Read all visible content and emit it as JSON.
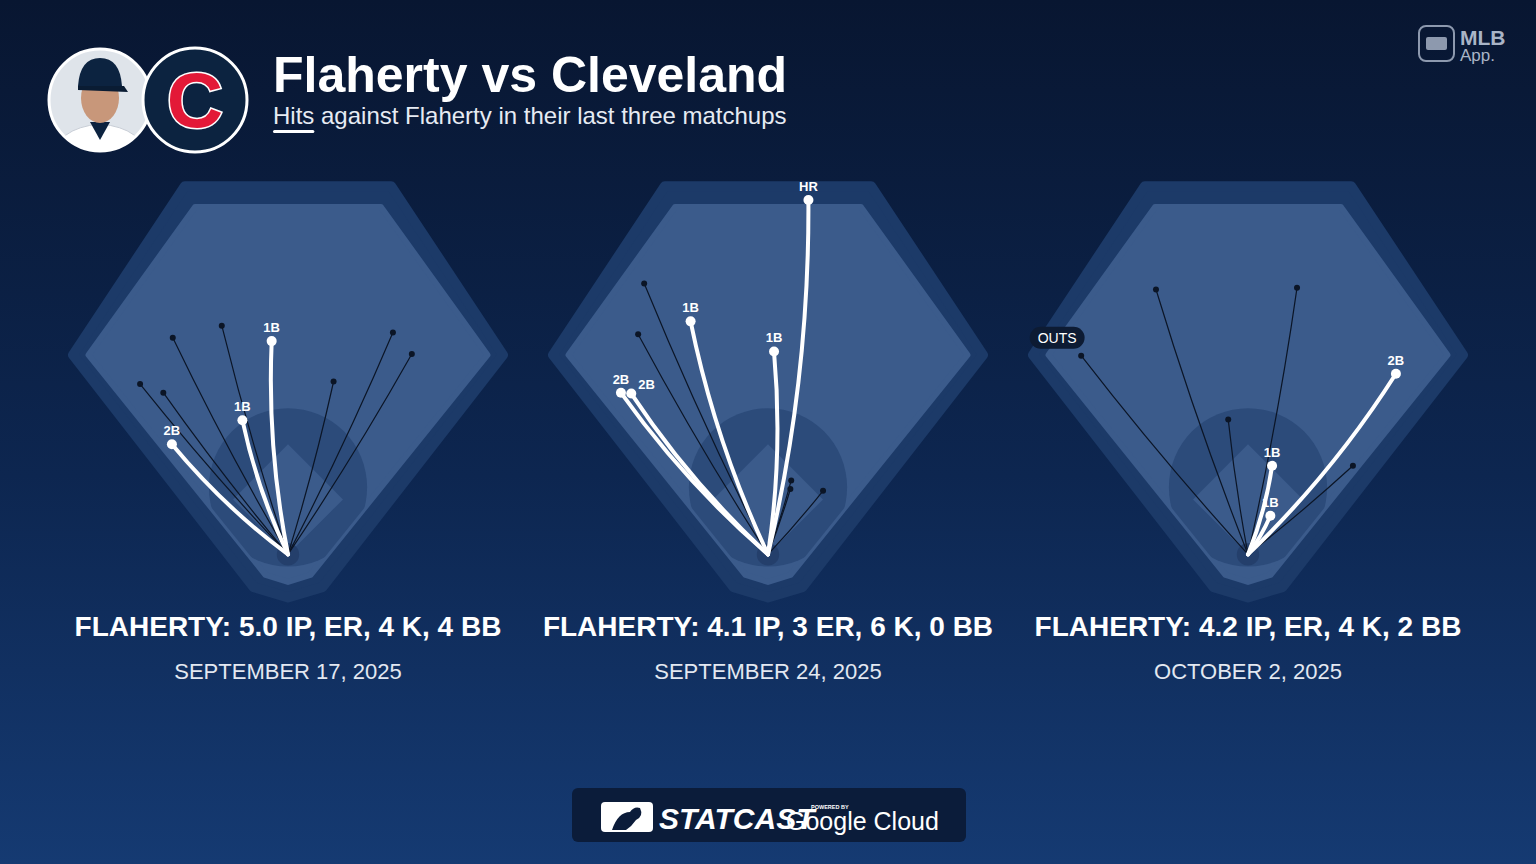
{
  "header": {
    "title": "Flaherty vs Cleveland",
    "subtitle": "Hits against Flaherty in their last three matchups",
    "team_logo": "C",
    "app": [
      "MLB",
      "App."
    ]
  },
  "footer": {
    "brand": "STATCAST",
    "powered_by": "POWERED BY",
    "partner": "Google Cloud"
  },
  "chart_data": [
    {
      "type": "scatter",
      "title": "FLAHERTY: 5.0 IP, ER, 4 K, 4 BB",
      "subtitle": "SEPTEMBER 17, 2025",
      "xlim": [
        -250,
        250
      ],
      "ylim": [
        -50,
        440
      ],
      "tick_labels": false,
      "series": [
        {
          "color": "#ffffff",
          "line_style": "thick",
          "x": [
            -135,
            -53,
            -19
          ],
          "values": [
            128,
            156,
            248
          ],
          "labels": [
            "2B",
            "1B",
            "1B"
          ]
        },
        {
          "color": "#0b1526",
          "line_style": "thin",
          "x": [
            -172,
            -145,
            -134,
            -77,
            53,
            122,
            144
          ],
          "values": [
            198,
            188,
            252,
            266,
            201,
            258,
            233
          ]
        }
      ]
    },
    {
      "type": "scatter",
      "title": "FLAHERTY: 4.1 IP, 3 ER, 6 K, 0 BB",
      "subtitle": "SEPTEMBER 24, 2025",
      "xlim": [
        -250,
        250
      ],
      "ylim": [
        -50,
        440
      ],
      "tick_labels": false,
      "series": [
        {
          "color": "#ffffff",
          "line_style": "thick",
          "x": [
            -171,
            -159,
            -90,
            7,
            47
          ],
          "values": [
            188,
            187,
            271,
            236,
            412
          ],
          "labels": [
            "2B",
            "2B",
            "1B",
            "1B",
            "HR"
          ]
        },
        {
          "color": "#0b1526",
          "line_style": "thin",
          "x": [
            -144,
            -151,
            27,
            26,
            64
          ],
          "values": [
            315,
            256,
            86,
            76,
            74
          ]
        }
      ]
    },
    {
      "type": "scatter",
      "title": "FLAHERTY: 4.2 IP, ER, 4 K, 2 BB",
      "subtitle": "OCTOBER 2, 2025",
      "xlim": [
        -250,
        250
      ],
      "ylim": [
        -50,
        440
      ],
      "tick_labels": false,
      "annotations": [
        {
          "text": "OUTS"
        }
      ],
      "series": [
        {
          "color": "#ffffff",
          "line_style": "thick",
          "x": [
            172,
            28,
            26
          ],
          "values": [
            210,
            103,
            45
          ],
          "labels": [
            "2B",
            "1B",
            "1B"
          ]
        },
        {
          "color": "#0b1526",
          "line_style": "thin",
          "x": [
            -194,
            -107,
            57,
            -23,
            122
          ],
          "values": [
            231,
            308,
            310,
            157,
            103
          ]
        }
      ]
    }
  ]
}
